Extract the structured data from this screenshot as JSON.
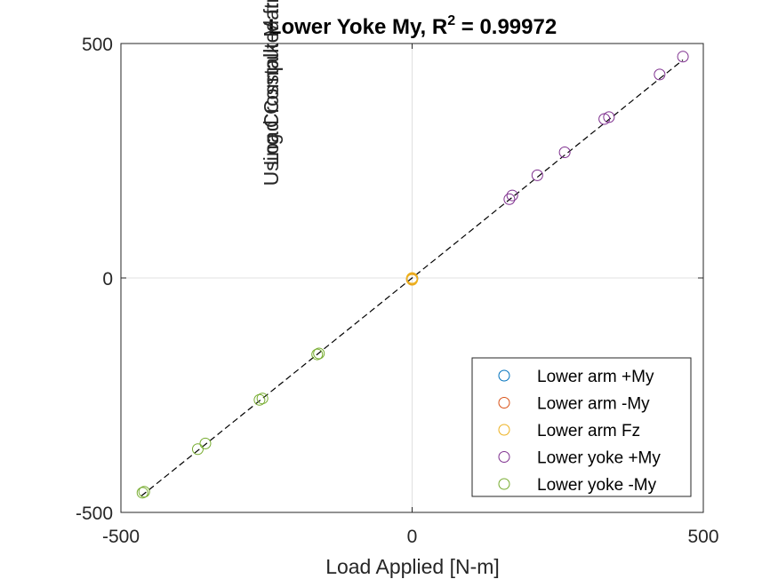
{
  "chart_data": {
    "type": "scatter",
    "title": "Lower Yoke My, R",
    "title_superscript": "2",
    "title_suffix": " = 0.99972",
    "xlabel": "Load Applied [N-m]",
    "ylabel_lines": [
      "Load Computed from Guages",
      "Using Crosstalk Matrix [N-m]"
    ],
    "xlim": [
      -500,
      500
    ],
    "ylim": [
      -500,
      500
    ],
    "xticks": [
      -500,
      0,
      500
    ],
    "yticks": [
      -500,
      0,
      500
    ],
    "xtick_labels": [
      "-500",
      "0",
      "500"
    ],
    "ytick_labels": [
      "-500",
      "0",
      "500"
    ],
    "zero_lines": true,
    "fit_line": {
      "x": [
        -465,
        465
      ],
      "y": [
        -465,
        465
      ],
      "style": "dashed",
      "color": "#000000"
    },
    "legend_position": "bottom-right",
    "series": [
      {
        "name": "Lower arm +My",
        "color": "#0072BD",
        "x": [
          0,
          0.5
        ],
        "y": [
          -2,
          -1
        ]
      },
      {
        "name": "Lower arm -My",
        "color": "#D95319",
        "x": [
          0,
          -0.5
        ],
        "y": [
          -1,
          -3
        ]
      },
      {
        "name": "Lower arm Fz",
        "color": "#EDB120",
        "x": [
          0,
          0.5,
          -0.5,
          0
        ],
        "y": [
          0,
          -2,
          -1,
          -4
        ]
      },
      {
        "name": "Lower yoke +My",
        "color": "#7E2F8E",
        "x": [
          167,
          172,
          215,
          262,
          330,
          338,
          425,
          465
        ],
        "y": [
          168,
          176,
          219,
          268,
          339,
          343,
          434,
          472
        ]
      },
      {
        "name": "Lower yoke -My",
        "color": "#77AC30",
        "x": [
          -160,
          -163,
          -257,
          -262,
          -355,
          -368,
          -460,
          -463
        ],
        "y": [
          -161,
          -163,
          -257,
          -260,
          -353,
          -365,
          -456,
          -458
        ]
      }
    ]
  }
}
